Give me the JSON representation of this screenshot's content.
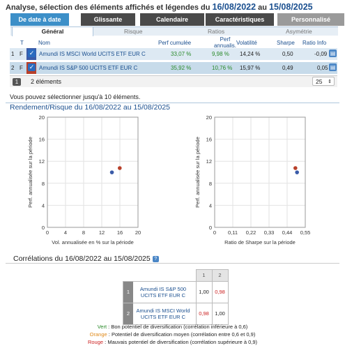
{
  "header": {
    "title_prefix": "Analyse, sélection des éléments affichés et légendes du",
    "date_from": "16/08/2022",
    "title_mid": "au",
    "date_to": "15/08/2025"
  },
  "tabs": [
    "De date à date",
    "Glissante",
    "Calendaire",
    "Caractéristiques",
    "Personnalisé"
  ],
  "subtabs": [
    "Général",
    "Risque",
    "Ratios",
    "Asymétrie"
  ],
  "columns": {
    "t": "T",
    "nom": "Nom",
    "perf_cumulee": "Perf cumulée",
    "perf_annualisee_1": "Perf",
    "perf_annualisee_2": "annualis.",
    "volatilite": "Volatilité",
    "sharpe": "Sharpe",
    "ratio_info": "Ratio Info"
  },
  "rows": [
    {
      "index": "1",
      "type": "F",
      "name": "Amundi IS MSCI World UCITS ETF EUR C",
      "perf_cumulee": "33,07 %",
      "perf_annualisee": "9,98 %",
      "volatilite": "14,24 %",
      "sharpe": "0,50",
      "ratio_info": "-0,09",
      "color": "#3a5ba8"
    },
    {
      "index": "2",
      "type": "F",
      "name": "Amundi IS S&P 500 UCITS ETF EUR C",
      "perf_cumulee": "35,92 %",
      "perf_annualisee": "10,76 %",
      "volatilite": "15,97 %",
      "sharpe": "0,49",
      "ratio_info": "0,05",
      "color": "#b8402a"
    }
  ],
  "footer": {
    "page": "1",
    "count_label": "2 éléments",
    "per_page": "25",
    "hint": "Vous pouvez sélectionner jusqu'à 10 éléments."
  },
  "scatter_title": "Rendement/Risque du 16/08/2022 au 15/08/2025",
  "chart_data": [
    {
      "type": "scatter",
      "xlabel": "Vol. annualisée en % sur la période",
      "ylabel": "Perf. annualisée sur la période",
      "xlim": [
        0,
        20
      ],
      "ylim": [
        0,
        20
      ],
      "x_ticks": [
        "0",
        "4",
        "8",
        "12",
        "16",
        "20"
      ],
      "y_ticks": [
        "0",
        "4",
        "8",
        "12",
        "16",
        "20"
      ],
      "grid": true,
      "points": [
        {
          "x": 14.24,
          "y": 9.98,
          "color": "#3a5ba8"
        },
        {
          "x": 15.97,
          "y": 10.76,
          "color": "#b8402a"
        }
      ]
    },
    {
      "type": "scatter",
      "xlabel": "Ratio de Sharpe sur la période",
      "ylabel": "Perf. annualisée sur la période",
      "xlim": [
        0,
        0.55
      ],
      "ylim": [
        0,
        20
      ],
      "x_ticks": [
        "0",
        "0,11",
        "0,22",
        "0,33",
        "0,44",
        "0,55"
      ],
      "y_ticks": [
        "0",
        "4",
        "8",
        "12",
        "16",
        "20"
      ],
      "grid": true,
      "points": [
        {
          "x": 0.5,
          "y": 9.98,
          "color": "#3a5ba8"
        },
        {
          "x": 0.49,
          "y": 10.76,
          "color": "#b8402a"
        }
      ]
    }
  ],
  "correlations": {
    "title": "Corrélations du 16/08/2022 au 15/08/2025",
    "col_headers": [
      "1",
      "2"
    ],
    "rows": [
      {
        "index": "1",
        "name": "Amundi IS S&P 500 UCITS ETF EUR C",
        "values": [
          "1,00",
          "0,98"
        ]
      },
      {
        "index": "2",
        "name": "Amundi IS MSCI World UCITS ETF EUR C",
        "values": [
          "0,98",
          "1,00"
        ]
      }
    ],
    "legend": [
      {
        "label": "Vert",
        "text": " : Bon potentiel de diversification (corrélation inférieure à 0,6)",
        "color": "#2a8a2a"
      },
      {
        "label": "Orange",
        "text": " : Potentiel de diversification moyen (corrélation entre 0,6 et 0,9)",
        "color": "#e08a1a"
      },
      {
        "label": "Rouge",
        "text": " : Mauvais potentiel de diversification (corrélation supérieure à 0,9)",
        "color": "#cc2222"
      }
    ]
  }
}
